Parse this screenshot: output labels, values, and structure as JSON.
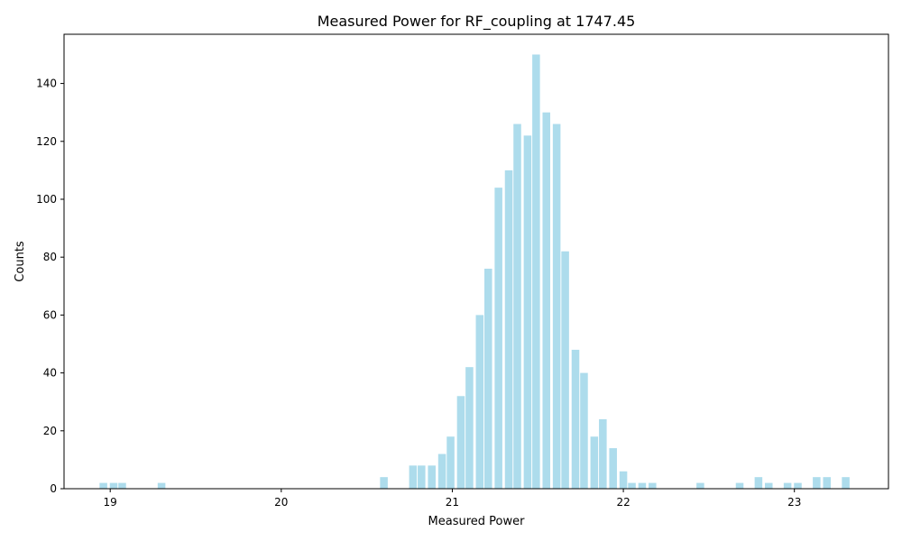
{
  "chart_data": {
    "type": "bar",
    "title": "Measured Power for RF_coupling at 1747.45",
    "xlabel": "Measured Power",
    "ylabel": "Counts",
    "xlim": [
      18.73,
      23.55
    ],
    "ylim": [
      0,
      157
    ],
    "bar_width": 0.045,
    "bar_color": "#ADDCEC",
    "xticks": [
      19,
      20,
      21,
      22,
      23
    ],
    "yticks": [
      0,
      20,
      40,
      60,
      80,
      100,
      120,
      140
    ],
    "x": [
      18.96,
      19.02,
      19.07,
      19.3,
      20.6,
      20.77,
      20.82,
      20.88,
      20.94,
      20.99,
      21.05,
      21.1,
      21.16,
      21.21,
      21.27,
      21.33,
      21.38,
      21.44,
      21.49,
      21.55,
      21.61,
      21.66,
      21.72,
      21.77,
      21.83,
      21.88,
      21.94,
      22.0,
      22.05,
      22.11,
      22.17,
      22.45,
      22.68,
      22.79,
      22.85,
      22.96,
      23.02,
      23.13,
      23.19,
      23.3
    ],
    "values": [
      2,
      2,
      2,
      2,
      4,
      8,
      8,
      8,
      12,
      18,
      32,
      42,
      60,
      76,
      104,
      110,
      126,
      122,
      150,
      130,
      126,
      82,
      48,
      40,
      18,
      24,
      14,
      6,
      2,
      2,
      2,
      2,
      2,
      4,
      2,
      2,
      2,
      4,
      4,
      4
    ]
  }
}
